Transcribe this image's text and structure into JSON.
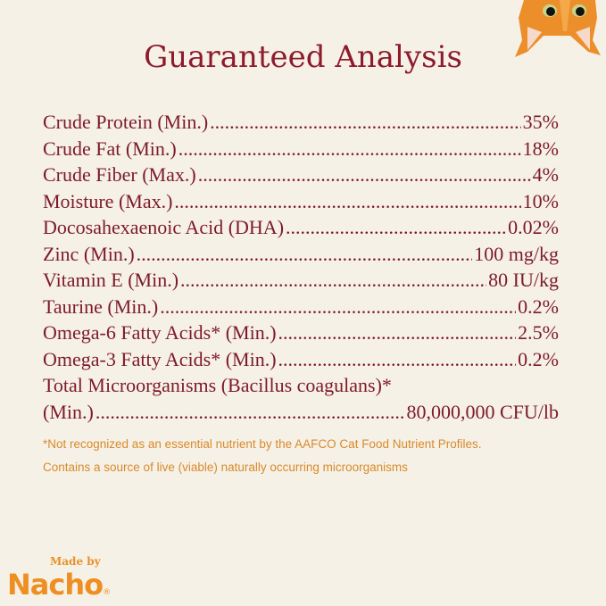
{
  "title": "Guaranteed Analysis",
  "rows": [
    {
      "label": "Crude Protein (Min.)",
      "value": "35%"
    },
    {
      "label": "Crude Fat (Min.)",
      "value": "18%"
    },
    {
      "label": "Crude Fiber (Max.)",
      "value": "4%"
    },
    {
      "label": "Moisture (Max.)",
      "value": "10%"
    },
    {
      "label": "Docosahexaenoic Acid (DHA)",
      "value": "0.02%"
    },
    {
      "label": "Zinc (Min.)",
      "value": "100 mg/kg"
    },
    {
      "label": "Vitamin E (Min.)",
      "value": "80 IU/kg"
    },
    {
      "label": "Taurine (Min.)",
      "value": "0.2%"
    },
    {
      "label": "Omega-6 Fatty Acids* (Min.)",
      "value": "2.5%"
    },
    {
      "label": "Omega-3 Fatty Acids* (Min.)",
      "value": "0.2%"
    }
  ],
  "microorganisms": {
    "label_line1": "Total Microorganisms (Bacillus coagulans)*",
    "label_line2": "(Min.)",
    "value": "80,000,000 CFU/lb"
  },
  "footnotes": [
    "*Not recognized as an essential nutrient by the AAFCO Cat Food Nutrient Profiles.",
    "Contains a source of live (viable) naturally occurring microorganisms"
  ],
  "brand": {
    "made_by": "Made by",
    "name": "Nacho",
    "mark": "®"
  },
  "colors": {
    "background": "#f6f1e6",
    "title": "#8e1b2c",
    "text": "#7d1a2a",
    "footnote": "#d88a2c",
    "brand": "#ee8f22"
  }
}
